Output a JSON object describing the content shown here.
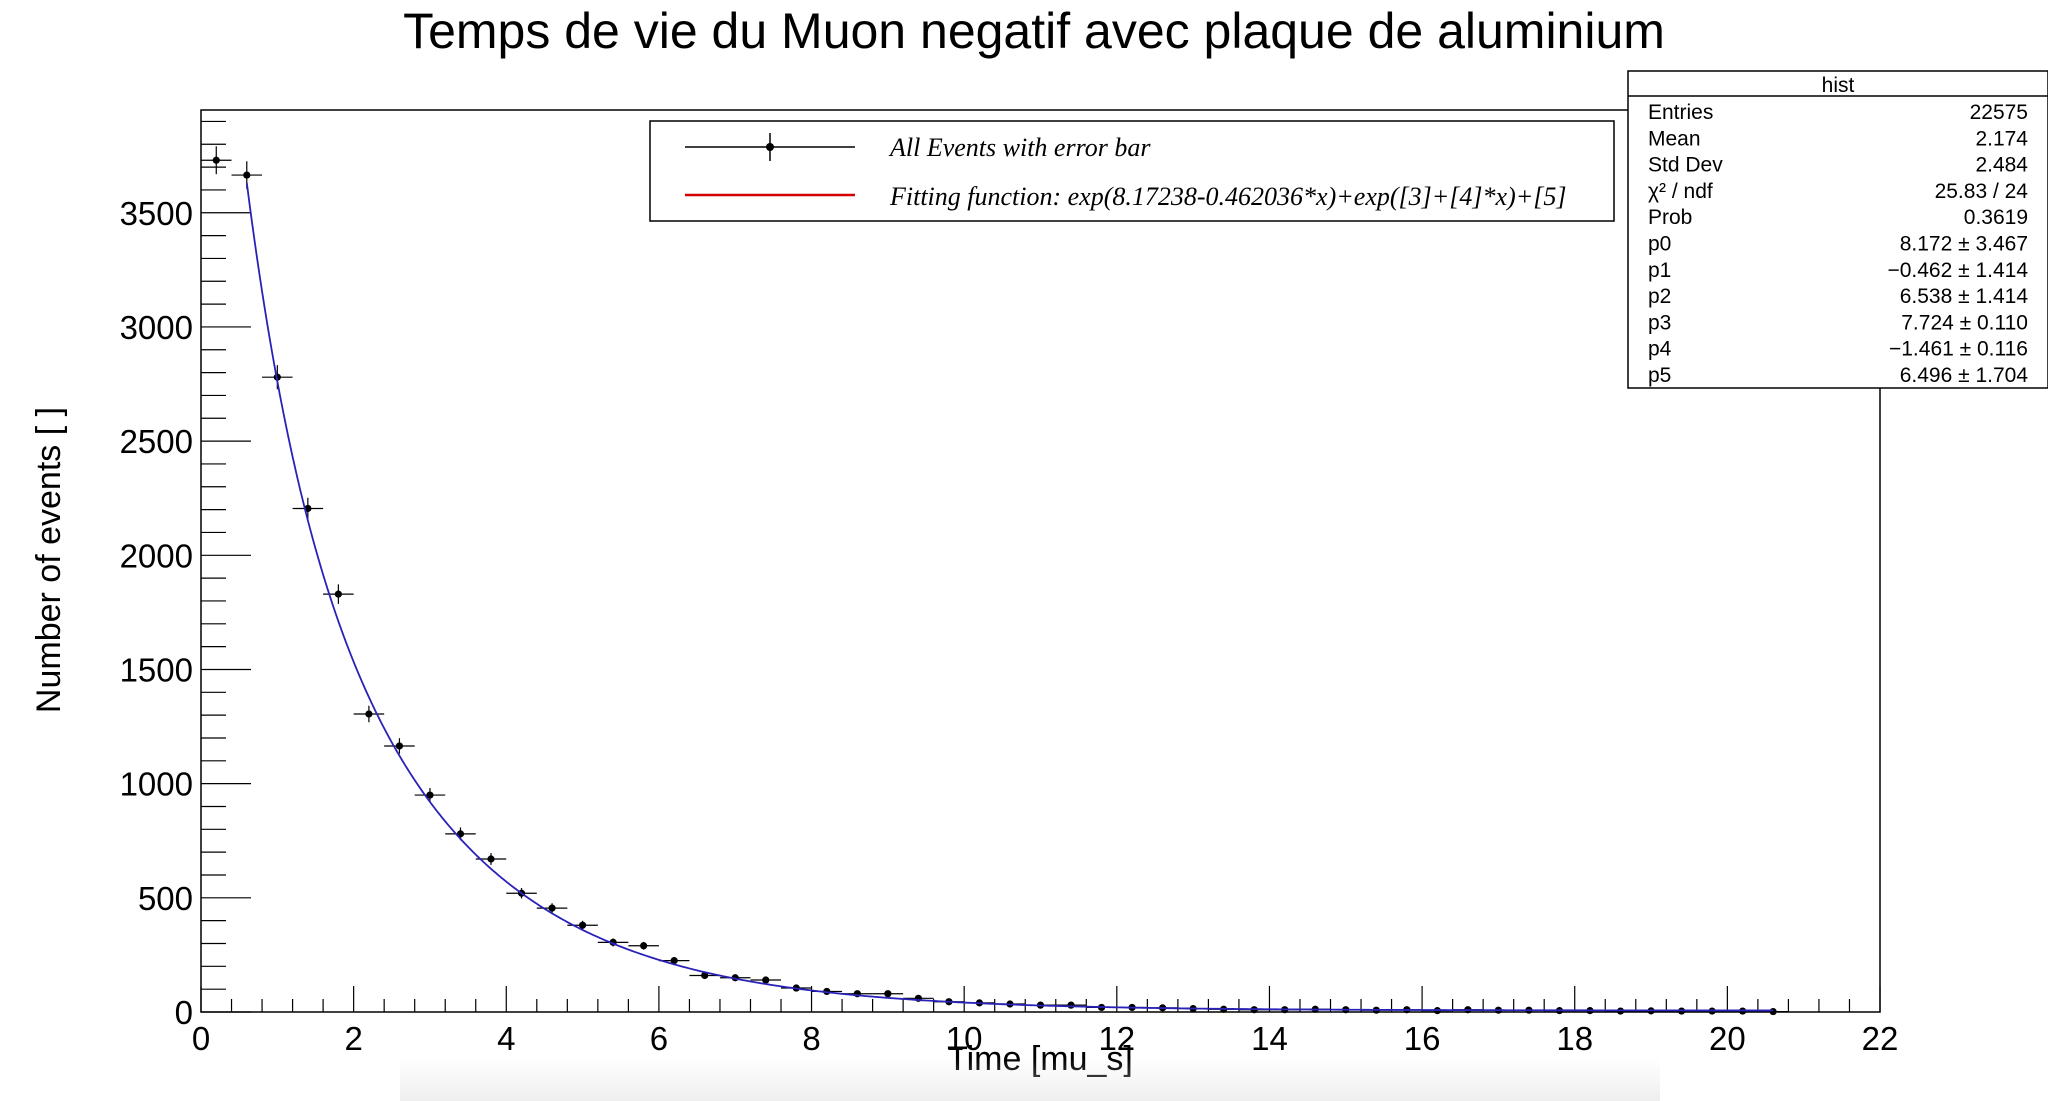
{
  "chart_data": {
    "type": "scatter",
    "title": "Temps de vie du Muon negatif avec plaque de aluminium",
    "xlabel": "Time [mu_s]",
    "ylabel": "Number of events [ ]",
    "xlim": [
      0,
      22
    ],
    "ylim": [
      0,
      3950
    ],
    "x_ticks": [
      0,
      2,
      4,
      6,
      8,
      10,
      12,
      14,
      16,
      18,
      20,
      22
    ],
    "y_ticks": [
      0,
      500,
      1000,
      1500,
      2000,
      2500,
      3000,
      3500
    ],
    "bin_width": 0.4,
    "series": [
      {
        "name": "All Events with error bar",
        "style": "points-with-error-bars",
        "color": "#000000",
        "x": [
          0.2,
          0.6,
          1.0,
          1.4,
          1.8,
          2.2,
          2.6,
          3.0,
          3.4,
          3.8,
          4.2,
          4.6,
          5.0,
          5.4,
          5.8,
          6.2,
          6.6,
          7.0,
          7.4,
          7.8,
          8.2,
          8.6,
          9.0,
          9.4,
          9.8,
          10.2,
          10.6,
          11.0,
          11.4,
          11.8,
          12.2,
          12.6,
          13.0,
          13.4,
          13.8,
          14.2,
          14.6,
          15.0,
          15.4,
          15.8,
          16.2,
          16.6,
          17.0,
          17.4,
          17.8,
          18.2,
          18.6,
          19.0,
          19.4,
          19.8,
          20.2,
          20.6
        ],
        "y": [
          3730,
          3665,
          2780,
          2205,
          1830,
          1305,
          1165,
          950,
          780,
          670,
          520,
          455,
          380,
          305,
          290,
          225,
          160,
          150,
          140,
          105,
          90,
          80,
          80,
          60,
          45,
          40,
          35,
          30,
          30,
          20,
          20,
          18,
          15,
          12,
          10,
          10,
          12,
          10,
          8,
          10,
          6,
          10,
          8,
          8,
          6,
          6,
          4,
          5,
          4,
          4,
          4,
          2
        ]
      },
      {
        "name": "Fitting function:  exp(8.17238-0.462036*x)+exp([3]+[4]*x)+[5]",
        "style": "line",
        "color": "#2a22b8",
        "legend_color": "#d40000",
        "x_range": [
          0.6,
          20.6
        ]
      }
    ],
    "fit_params": {
      "p0": 8.172,
      "p1": -0.462,
      "p2": 6.538,
      "p3": 7.724,
      "p4": -1.461,
      "p5": 6.496
    }
  },
  "legend": {
    "entries": [
      {
        "label": "All Events with error bar"
      },
      {
        "label": "Fitting function:  exp(8.17238-0.462036*x)+exp([3]+[4]*x)+[5]"
      }
    ]
  },
  "stats_box": {
    "header": "hist",
    "rows": [
      {
        "label": "Entries",
        "value": "22575"
      },
      {
        "label": "Mean",
        "value": "2.174"
      },
      {
        "label": "Std Dev",
        "value": "2.484"
      },
      {
        "label": "χ² / ndf",
        "value": "25.83 / 24"
      },
      {
        "label": "Prob",
        "value": "0.3619"
      },
      {
        "label": "p0",
        "value": "8.172 ± 3.467"
      },
      {
        "label": "p1",
        "value": "−0.462 ± 1.414"
      },
      {
        "label": "p2",
        "value": "6.538 ± 1.414"
      },
      {
        "label": "p3",
        "value": "7.724 ± 0.110"
      },
      {
        "label": "p4",
        "value": "−1.461 ± 0.116"
      },
      {
        "label": "p5",
        "value": "6.496 ± 1.704"
      }
    ]
  }
}
